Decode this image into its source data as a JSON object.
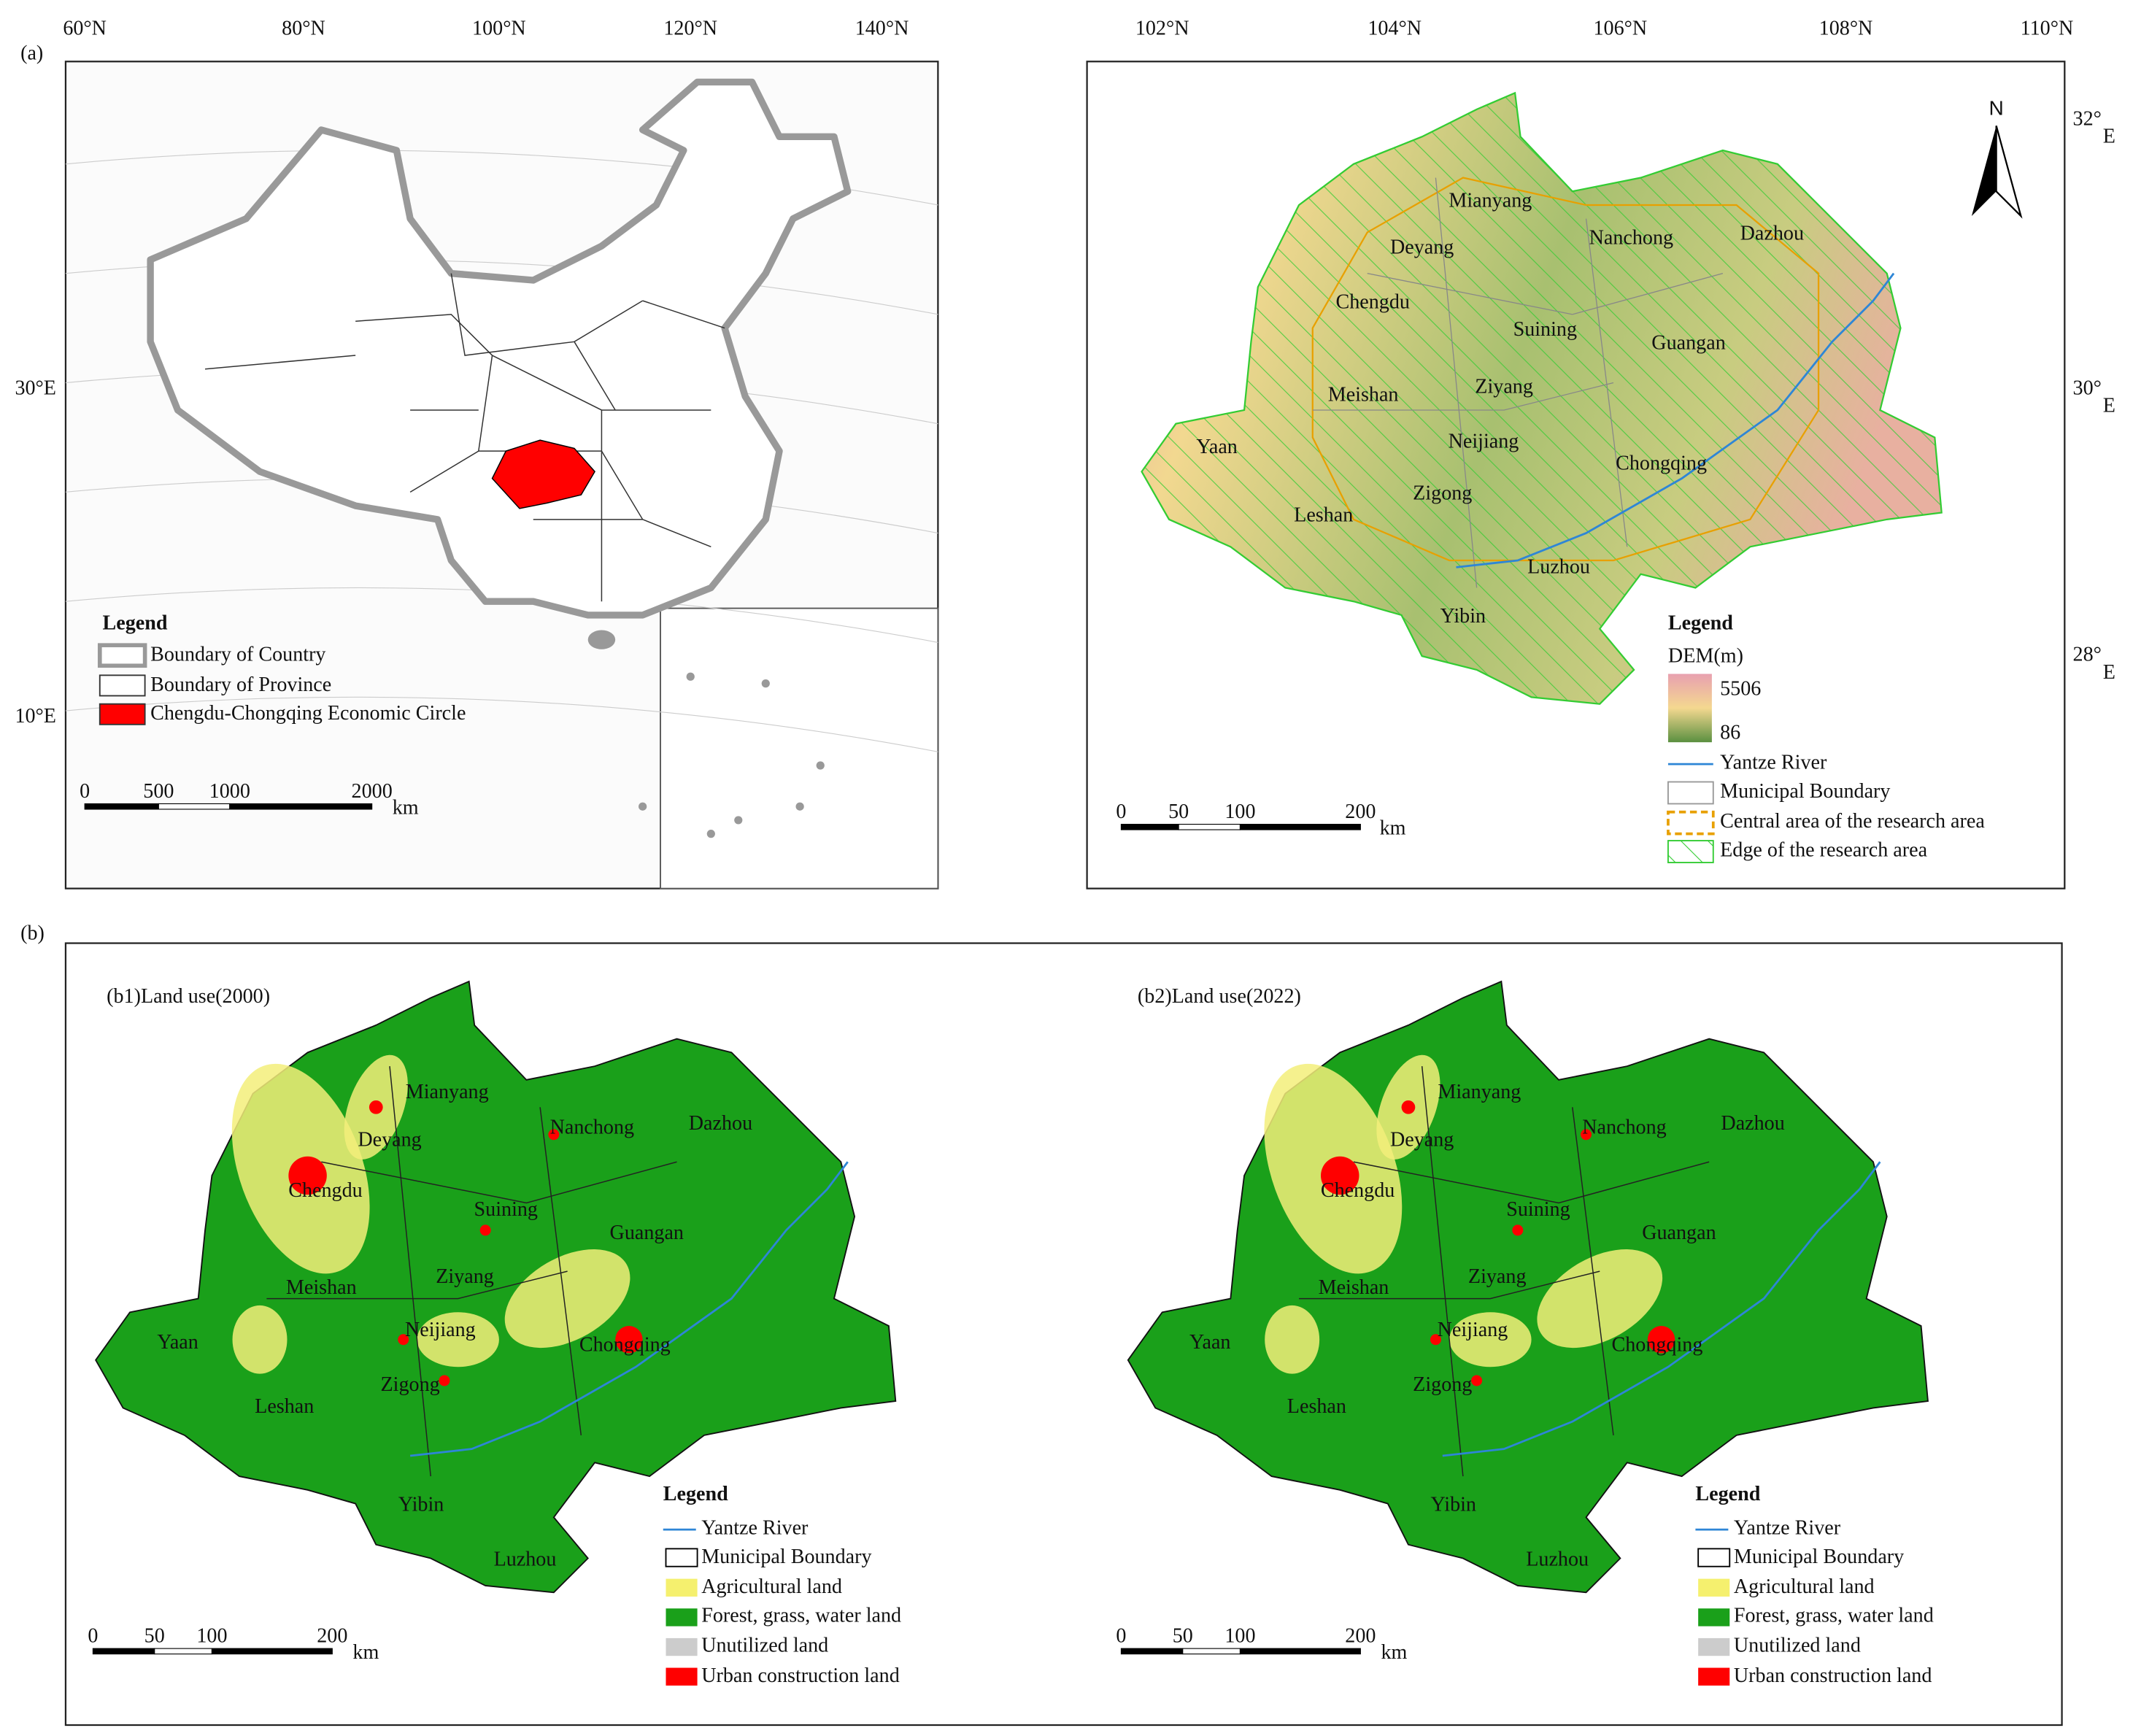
{
  "panel_a": {
    "label": "(a)",
    "china_map": {
      "lon_ticks": [
        "60°N",
        "80°N",
        "100°N",
        "120°N",
        "140°N"
      ],
      "lat_ticks": [
        "30°E",
        "10°E"
      ],
      "legend": {
        "title": "Legend",
        "items": [
          "Boundary of Country",
          "Boundary of Province",
          "Chengdu-Chongqing Economic Circle"
        ]
      },
      "scale": {
        "labels": [
          "0",
          "500",
          "1000",
          "2000"
        ],
        "unit": "km"
      }
    },
    "study_area": {
      "lon_ticks": [
        "102°N",
        "104°N",
        "106°N",
        "108°N",
        "110°N"
      ],
      "lat_ticks": [
        {
          "deg": "32°",
          "dir": "E"
        },
        {
          "deg": "30°",
          "dir": "E"
        },
        {
          "deg": "28°",
          "dir": "E"
        }
      ],
      "north": "N",
      "cities": [
        "Mianyang",
        "Deyang",
        "Nanchong",
        "Dazhou",
        "Chengdu",
        "Suining",
        "Guangan",
        "Meishan",
        "Ziyang",
        "Yaan",
        "Neijiang",
        "Chongqing",
        "Zigong",
        "Leshan",
        "Luzhou",
        "Yibin"
      ],
      "legend": {
        "title": "Legend",
        "dem_title": "DEM(m)",
        "dem_max": "5506",
        "dem_min": "86",
        "items": [
          "Yantze River",
          "Municipal Boundary",
          "Central area of the research area",
          "Edge of the research area"
        ]
      },
      "scale": {
        "labels": [
          "0",
          "50",
          "100",
          "200"
        ],
        "unit": "km"
      }
    }
  },
  "panel_b": {
    "label": "(b)",
    "maps": [
      {
        "title": "(b1)Land use(2000)"
      },
      {
        "title": "(b2)Land use(2022)"
      }
    ],
    "cities": [
      "Mianyang",
      "Deyang",
      "Nanchong",
      "Dazhou",
      "Chengdu",
      "Suining",
      "Guangan",
      "Meishan",
      "Ziyang",
      "Yaan",
      "Neijiang",
      "Chongqing",
      "Zigong",
      "Leshan",
      "Luzhou",
      "Yibin"
    ],
    "legend": {
      "title": "Legend",
      "items": [
        "Yantze River",
        "Municipal Boundary",
        "Agricultural land",
        "Forest, grass, water land",
        "Unutilized land",
        "Urban construction land"
      ]
    },
    "scale": {
      "labels": [
        "0",
        "50",
        "100",
        "200"
      ],
      "unit": "km"
    }
  }
}
